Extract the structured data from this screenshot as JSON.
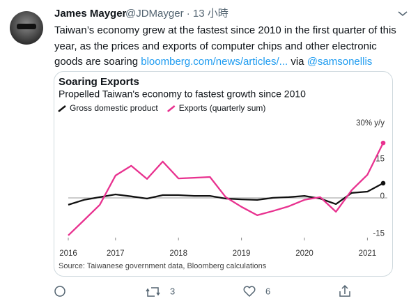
{
  "tweet": {
    "name": "James Mayger",
    "handle": "@JDMayger",
    "separator": "·",
    "time": "13 小時",
    "text_lines": [
      "Taiwan’s economy grew at the fastest since 2010 in the first quarter of this",
      "year, as the prices and exports of computer chips and other electronic",
      "goods are soaring "
    ],
    "link": "bloomberg.com/news/articles/...",
    "via": " via ",
    "mention": "@samsonellis",
    "retweets": 3,
    "likes": 6
  },
  "chart_data": {
    "type": "line",
    "title": "Soaring Exports",
    "subtitle": "Propelled Taiwan's economy to fastest growth since 2010",
    "source": "Source: Taiwanese government data, Bloomberg calculations",
    "categories": [
      "2016",
      null,
      null,
      "2017",
      null,
      null,
      null,
      "2018",
      null,
      null,
      null,
      "2019",
      null,
      null,
      null,
      "2020",
      null,
      null,
      null,
      "2021",
      null
    ],
    "series": [
      {
        "name": "Gross domestic product",
        "color": "#111111",
        "values": [
          -2.8,
          -0.8,
          0.3,
          1.4,
          0.6,
          -0.3,
          1.1,
          1.1,
          0.8,
          0.8,
          -0.3,
          -0.6,
          -0.8,
          0,
          0.3,
          0.8,
          -0.3,
          -2.5,
          2,
          2.5,
          5.9
        ]
      },
      {
        "name": "Exports (quarterly sum)",
        "color": "#e8318f",
        "values": [
          -15.1,
          -9,
          -2.8,
          9,
          12.9,
          7.6,
          14.6,
          7.8,
          8.1,
          8.4,
          0.3,
          -3.6,
          -7,
          -5.3,
          -3.4,
          -0.8,
          0.3,
          -5.6,
          3.1,
          9.3,
          22.1
        ]
      }
    ],
    "ylim": [
      -16,
      31
    ],
    "yticks": [
      {
        "value": 30,
        "label": "30% y/y"
      },
      15,
      0,
      -15
    ],
    "grid": false
  }
}
